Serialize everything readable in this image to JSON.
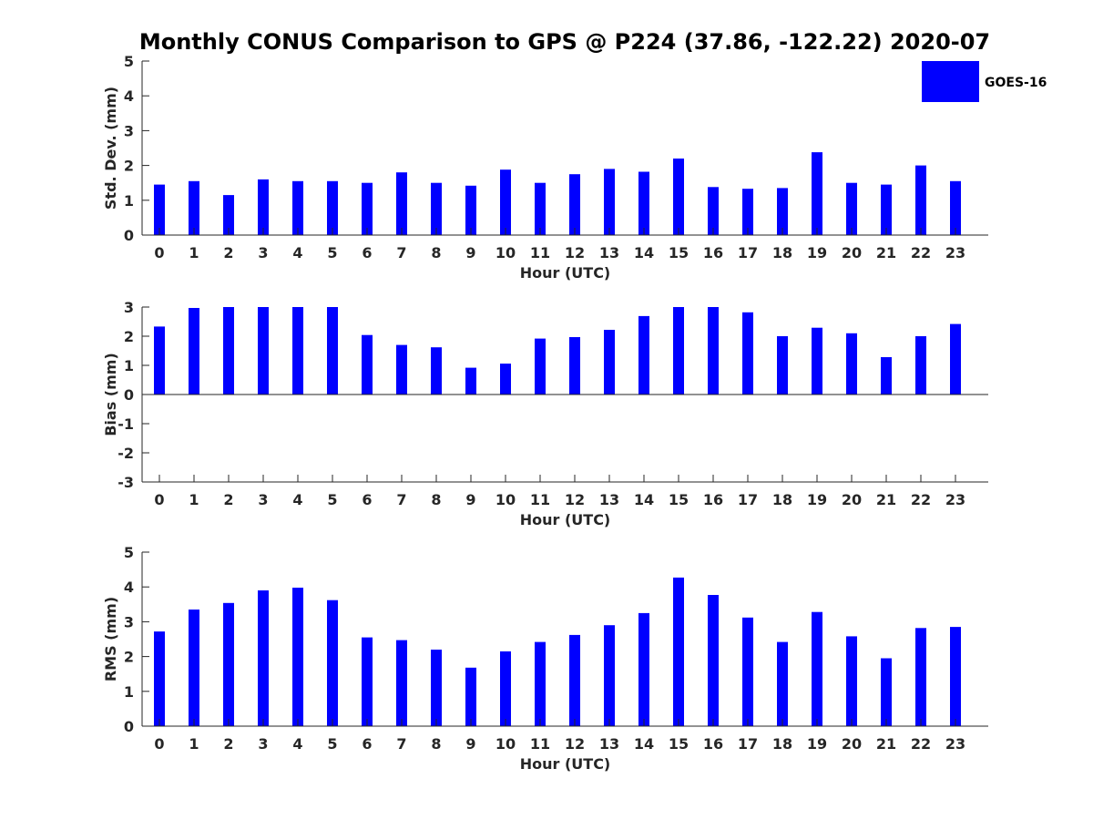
{
  "figure_title": "Monthly CONUS Comparison to GPS @ P224 (37.86, -122.22) 2020-07",
  "legend": {
    "label": "GOES-16",
    "color": "#0000ff",
    "placement": "top-right"
  },
  "chart_data": [
    {
      "type": "bar",
      "xlabel": "Hour (UTC)",
      "ylabel": "Std. Dev. (mm)",
      "categories": [
        "0",
        "1",
        "2",
        "3",
        "4",
        "5",
        "6",
        "7",
        "8",
        "9",
        "10",
        "11",
        "12",
        "13",
        "14",
        "15",
        "16",
        "17",
        "18",
        "19",
        "20",
        "21",
        "22",
        "23"
      ],
      "series": [
        {
          "name": "GOES-16",
          "color": "#0000ff",
          "values": [
            1.45,
            1.55,
            1.15,
            1.6,
            1.55,
            1.55,
            1.5,
            1.8,
            1.5,
            1.42,
            1.88,
            1.5,
            1.75,
            1.9,
            1.82,
            2.2,
            1.38,
            1.33,
            1.35,
            2.38,
            1.5,
            1.45,
            2.0,
            1.55
          ]
        }
      ],
      "ylim": [
        0,
        5
      ],
      "yticks": [
        0,
        1,
        2,
        3,
        4,
        5
      ],
      "grid": false
    },
    {
      "type": "bar",
      "xlabel": "Hour (UTC)",
      "ylabel": "Bias (mm)",
      "categories": [
        "0",
        "1",
        "2",
        "3",
        "4",
        "5",
        "6",
        "7",
        "8",
        "9",
        "10",
        "11",
        "12",
        "13",
        "14",
        "15",
        "16",
        "17",
        "18",
        "19",
        "20",
        "21",
        "22",
        "23"
      ],
      "series": [
        {
          "name": "GOES-16",
          "color": "#0000ff",
          "values": [
            2.33,
            2.97,
            3.0,
            3.0,
            3.0,
            3.0,
            2.04,
            1.7,
            1.62,
            0.92,
            1.06,
            1.92,
            1.97,
            2.22,
            2.69,
            3.0,
            3.0,
            2.82,
            2.0,
            2.29,
            2.1,
            1.28,
            2.0,
            2.42
          ]
        }
      ],
      "ylim": [
        -3,
        3
      ],
      "yticks": [
        -3,
        -2,
        -1,
        0,
        1,
        2,
        3
      ],
      "grid": false
    },
    {
      "type": "bar",
      "xlabel": "Hour (UTC)",
      "ylabel": "RMS (mm)",
      "categories": [
        "0",
        "1",
        "2",
        "3",
        "4",
        "5",
        "6",
        "7",
        "8",
        "9",
        "10",
        "11",
        "12",
        "13",
        "14",
        "15",
        "16",
        "17",
        "18",
        "19",
        "20",
        "21",
        "22",
        "23"
      ],
      "series": [
        {
          "name": "GOES-16",
          "color": "#0000ff",
          "values": [
            2.72,
            3.35,
            3.54,
            3.9,
            3.98,
            3.62,
            2.55,
            2.47,
            2.2,
            1.68,
            2.15,
            2.42,
            2.62,
            2.9,
            3.25,
            4.27,
            3.77,
            3.12,
            2.42,
            3.28,
            2.58,
            1.95,
            2.82,
            2.85
          ]
        }
      ],
      "ylim": [
        0,
        5
      ],
      "yticks": [
        0,
        1,
        2,
        3,
        4,
        5
      ],
      "grid": false
    }
  ]
}
